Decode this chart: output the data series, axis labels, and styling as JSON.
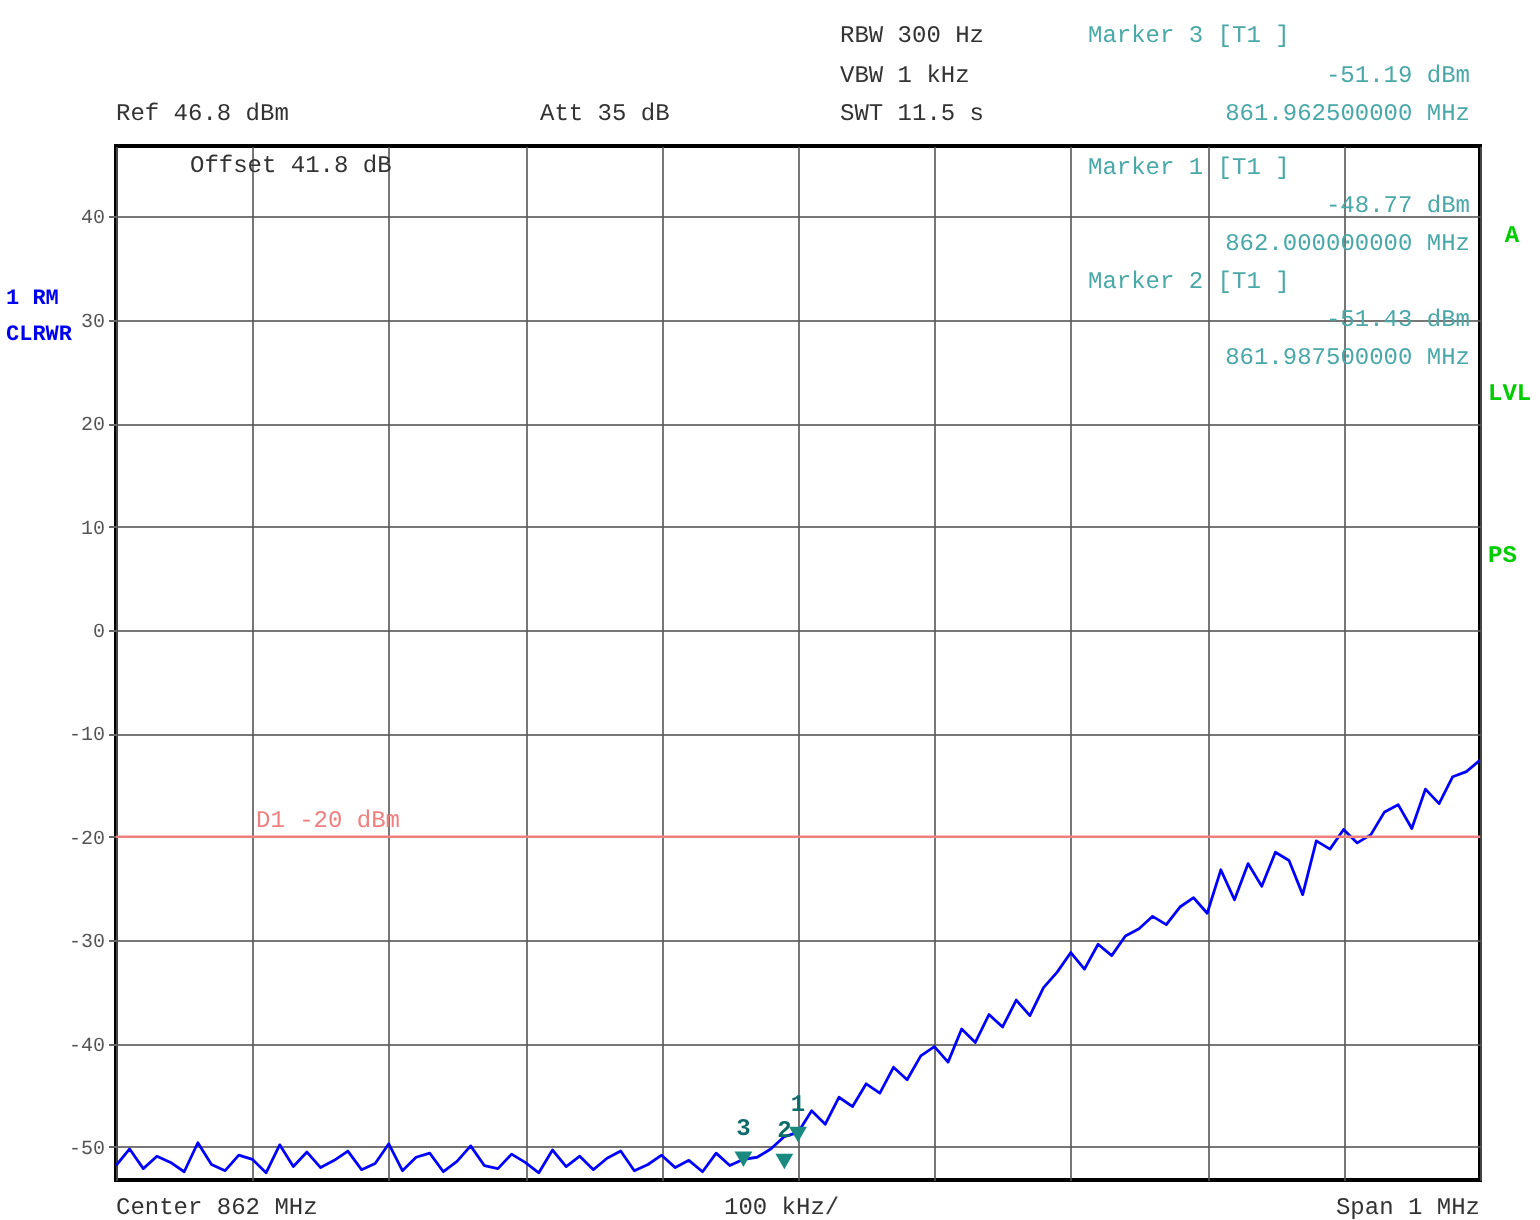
{
  "chart_data": {
    "type": "line",
    "ylim": [
      -53.2,
      46.8
    ],
    "yticks": [
      40,
      30,
      20,
      10,
      0,
      -10,
      -20,
      -30,
      -40,
      -50
    ],
    "tick_labels": "y",
    "grid": true,
    "categories": [
      null,
      null,
      null,
      null,
      null,
      null,
      null,
      null,
      null,
      null,
      null,
      null,
      null,
      null,
      null,
      null,
      null,
      null,
      null,
      null,
      null,
      null,
      null,
      null,
      null,
      null,
      null,
      null,
      null,
      null,
      null,
      null,
      null,
      null,
      null,
      null,
      null,
      null,
      null,
      null,
      null,
      null,
      null,
      null,
      null,
      null,
      null,
      null,
      null,
      null,
      null,
      null,
      null,
      null,
      null,
      null,
      null,
      null,
      null,
      null,
      null,
      null,
      null,
      null,
      null,
      null,
      null,
      null,
      null,
      null,
      null,
      null,
      null,
      null,
      null,
      null,
      null,
      null,
      null,
      null,
      null,
      null,
      null,
      null,
      null,
      null,
      null,
      null,
      null,
      null,
      null,
      null,
      null,
      null,
      null,
      null,
      null,
      null,
      null,
      null,
      null
    ],
    "series": [
      {
        "color": "#0000ff",
        "values": [
          -51.8,
          -50.2,
          -52.1,
          -50.9,
          -51.5,
          -52.4,
          -49.6,
          -51.7,
          -52.3,
          -50.8,
          -51.2,
          -52.5,
          -49.8,
          -51.9,
          -50.5,
          -52.0,
          -51.3,
          -50.4,
          -52.2,
          -51.6,
          -49.7,
          -52.3,
          -51.0,
          -50.6,
          -52.4,
          -51.4,
          -49.9,
          -51.8,
          -52.1,
          -50.7,
          -51.5,
          -52.5,
          -50.3,
          -51.9,
          -50.9,
          -52.2,
          -51.1,
          -50.4,
          -52.3,
          -51.7,
          -50.8,
          -52.0,
          -51.3,
          -52.4,
          -50.6,
          -51.8,
          -51.2,
          -51.0,
          -50.2,
          -49.0,
          -48.6,
          -46.5,
          -47.8,
          -45.2,
          -46.1,
          -43.9,
          -44.8,
          -42.3,
          -43.5,
          -41.2,
          -40.3,
          -41.8,
          -38.6,
          -39.9,
          -37.2,
          -38.4,
          -35.8,
          -37.3,
          -34.6,
          -33.1,
          -31.2,
          -32.8,
          -30.4,
          -31.5,
          -29.6,
          -28.9,
          -27.7,
          -28.5,
          -26.8,
          -25.9,
          -27.4,
          -23.2,
          -26.1,
          -22.6,
          -24.8,
          -21.5,
          -22.3,
          -25.6,
          -20.4,
          -21.2,
          -19.3,
          -20.6,
          -19.8,
          -17.6,
          -16.9,
          -19.2,
          -15.4,
          -16.8,
          -14.2,
          -13.7,
          -12.6
        ]
      },
      {
        "type": "scatter",
        "name": "3",
        "color": "#1a8a80",
        "marker": "triangle",
        "values": [
          null,
          null,
          null,
          null,
          null,
          null,
          null,
          null,
          null,
          null,
          null,
          null,
          null,
          null,
          null,
          null,
          null,
          null,
          null,
          null,
          null,
          null,
          null,
          null,
          null,
          null,
          null,
          null,
          null,
          null,
          null,
          null,
          null,
          null,
          null,
          null,
          null,
          null,
          null,
          null,
          null,
          null,
          null,
          null,
          null,
          null,
          -51.2,
          null,
          null,
          null,
          null,
          null,
          null,
          null,
          null,
          null,
          null,
          null,
          null,
          null,
          null,
          null,
          null,
          null,
          null,
          null,
          null,
          null,
          null,
          null,
          null,
          null,
          null,
          null,
          null,
          null,
          null,
          null,
          null,
          null,
          null,
          null,
          null,
          null,
          null,
          null,
          null,
          null,
          null,
          null,
          null,
          null,
          null,
          null,
          null,
          null,
          null,
          null,
          null,
          null,
          null
        ]
      },
      {
        "type": "scatter",
        "name": "2",
        "color": "#1a8a80",
        "marker": "triangle",
        "values": [
          null,
          null,
          null,
          null,
          null,
          null,
          null,
          null,
          null,
          null,
          null,
          null,
          null,
          null,
          null,
          null,
          null,
          null,
          null,
          null,
          null,
          null,
          null,
          null,
          null,
          null,
          null,
          null,
          null,
          null,
          null,
          null,
          null,
          null,
          null,
          null,
          null,
          null,
          null,
          null,
          null,
          null,
          null,
          null,
          null,
          null,
          null,
          null,
          null,
          -51.4,
          null,
          null,
          null,
          null,
          null,
          null,
          null,
          null,
          null,
          null,
          null,
          null,
          null,
          null,
          null,
          null,
          null,
          null,
          null,
          null,
          null,
          null,
          null,
          null,
          null,
          null,
          null,
          null,
          null,
          null,
          null,
          null,
          null,
          null,
          null,
          null,
          null,
          null,
          null,
          null,
          null,
          null,
          null,
          null,
          null,
          null,
          null,
          null,
          null,
          null,
          null
        ]
      },
      {
        "type": "scatter",
        "name": "1",
        "color": "#1a8a80",
        "marker": "triangle",
        "values": [
          null,
          null,
          null,
          null,
          null,
          null,
          null,
          null,
          null,
          null,
          null,
          null,
          null,
          null,
          null,
          null,
          null,
          null,
          null,
          null,
          null,
          null,
          null,
          null,
          null,
          null,
          null,
          null,
          null,
          null,
          null,
          null,
          null,
          null,
          null,
          null,
          null,
          null,
          null,
          null,
          null,
          null,
          null,
          null,
          null,
          null,
          null,
          null,
          null,
          null,
          -48.8,
          null,
          null,
          null,
          null,
          null,
          null,
          null,
          null,
          null,
          null,
          null,
          null,
          null,
          null,
          null,
          null,
          null,
          null,
          null,
          null,
          null,
          null,
          null,
          null,
          null,
          null,
          null,
          null,
          null,
          null,
          null,
          null,
          null,
          null,
          null,
          null,
          null,
          null,
          null,
          null,
          null,
          null,
          null,
          null,
          null,
          null,
          null,
          null,
          null,
          null
        ]
      }
    ],
    "ref_lines": [
      {
        "axis": "y",
        "value": -20,
        "label": "D1 -20 dBm",
        "color": "#f08080"
      }
    ],
    "annotations": [
      "RBW 300 Hz",
      "VBW 1 kHz",
      "SWT 11.5 s",
      "Marker 3 [T1 ]",
      "-51.19 dBm",
      "861.962500000 MHz",
      "Ref 46.8 dBm",
      "Att 35 dB",
      "Offset 41.8 dB",
      "Marker 1 [T1 ]",
      "-48.77 dBm",
      "862.000000000 MHz",
      "Marker 2 [T1 ]",
      "-51.43 dBm",
      "861.987500000 MHz",
      "1 RM",
      "CLRWR",
      "A",
      "LVL",
      "PS",
      "Center 862 MHz",
      "100 kHz/",
      "Span 1 MHz"
    ]
  }
}
